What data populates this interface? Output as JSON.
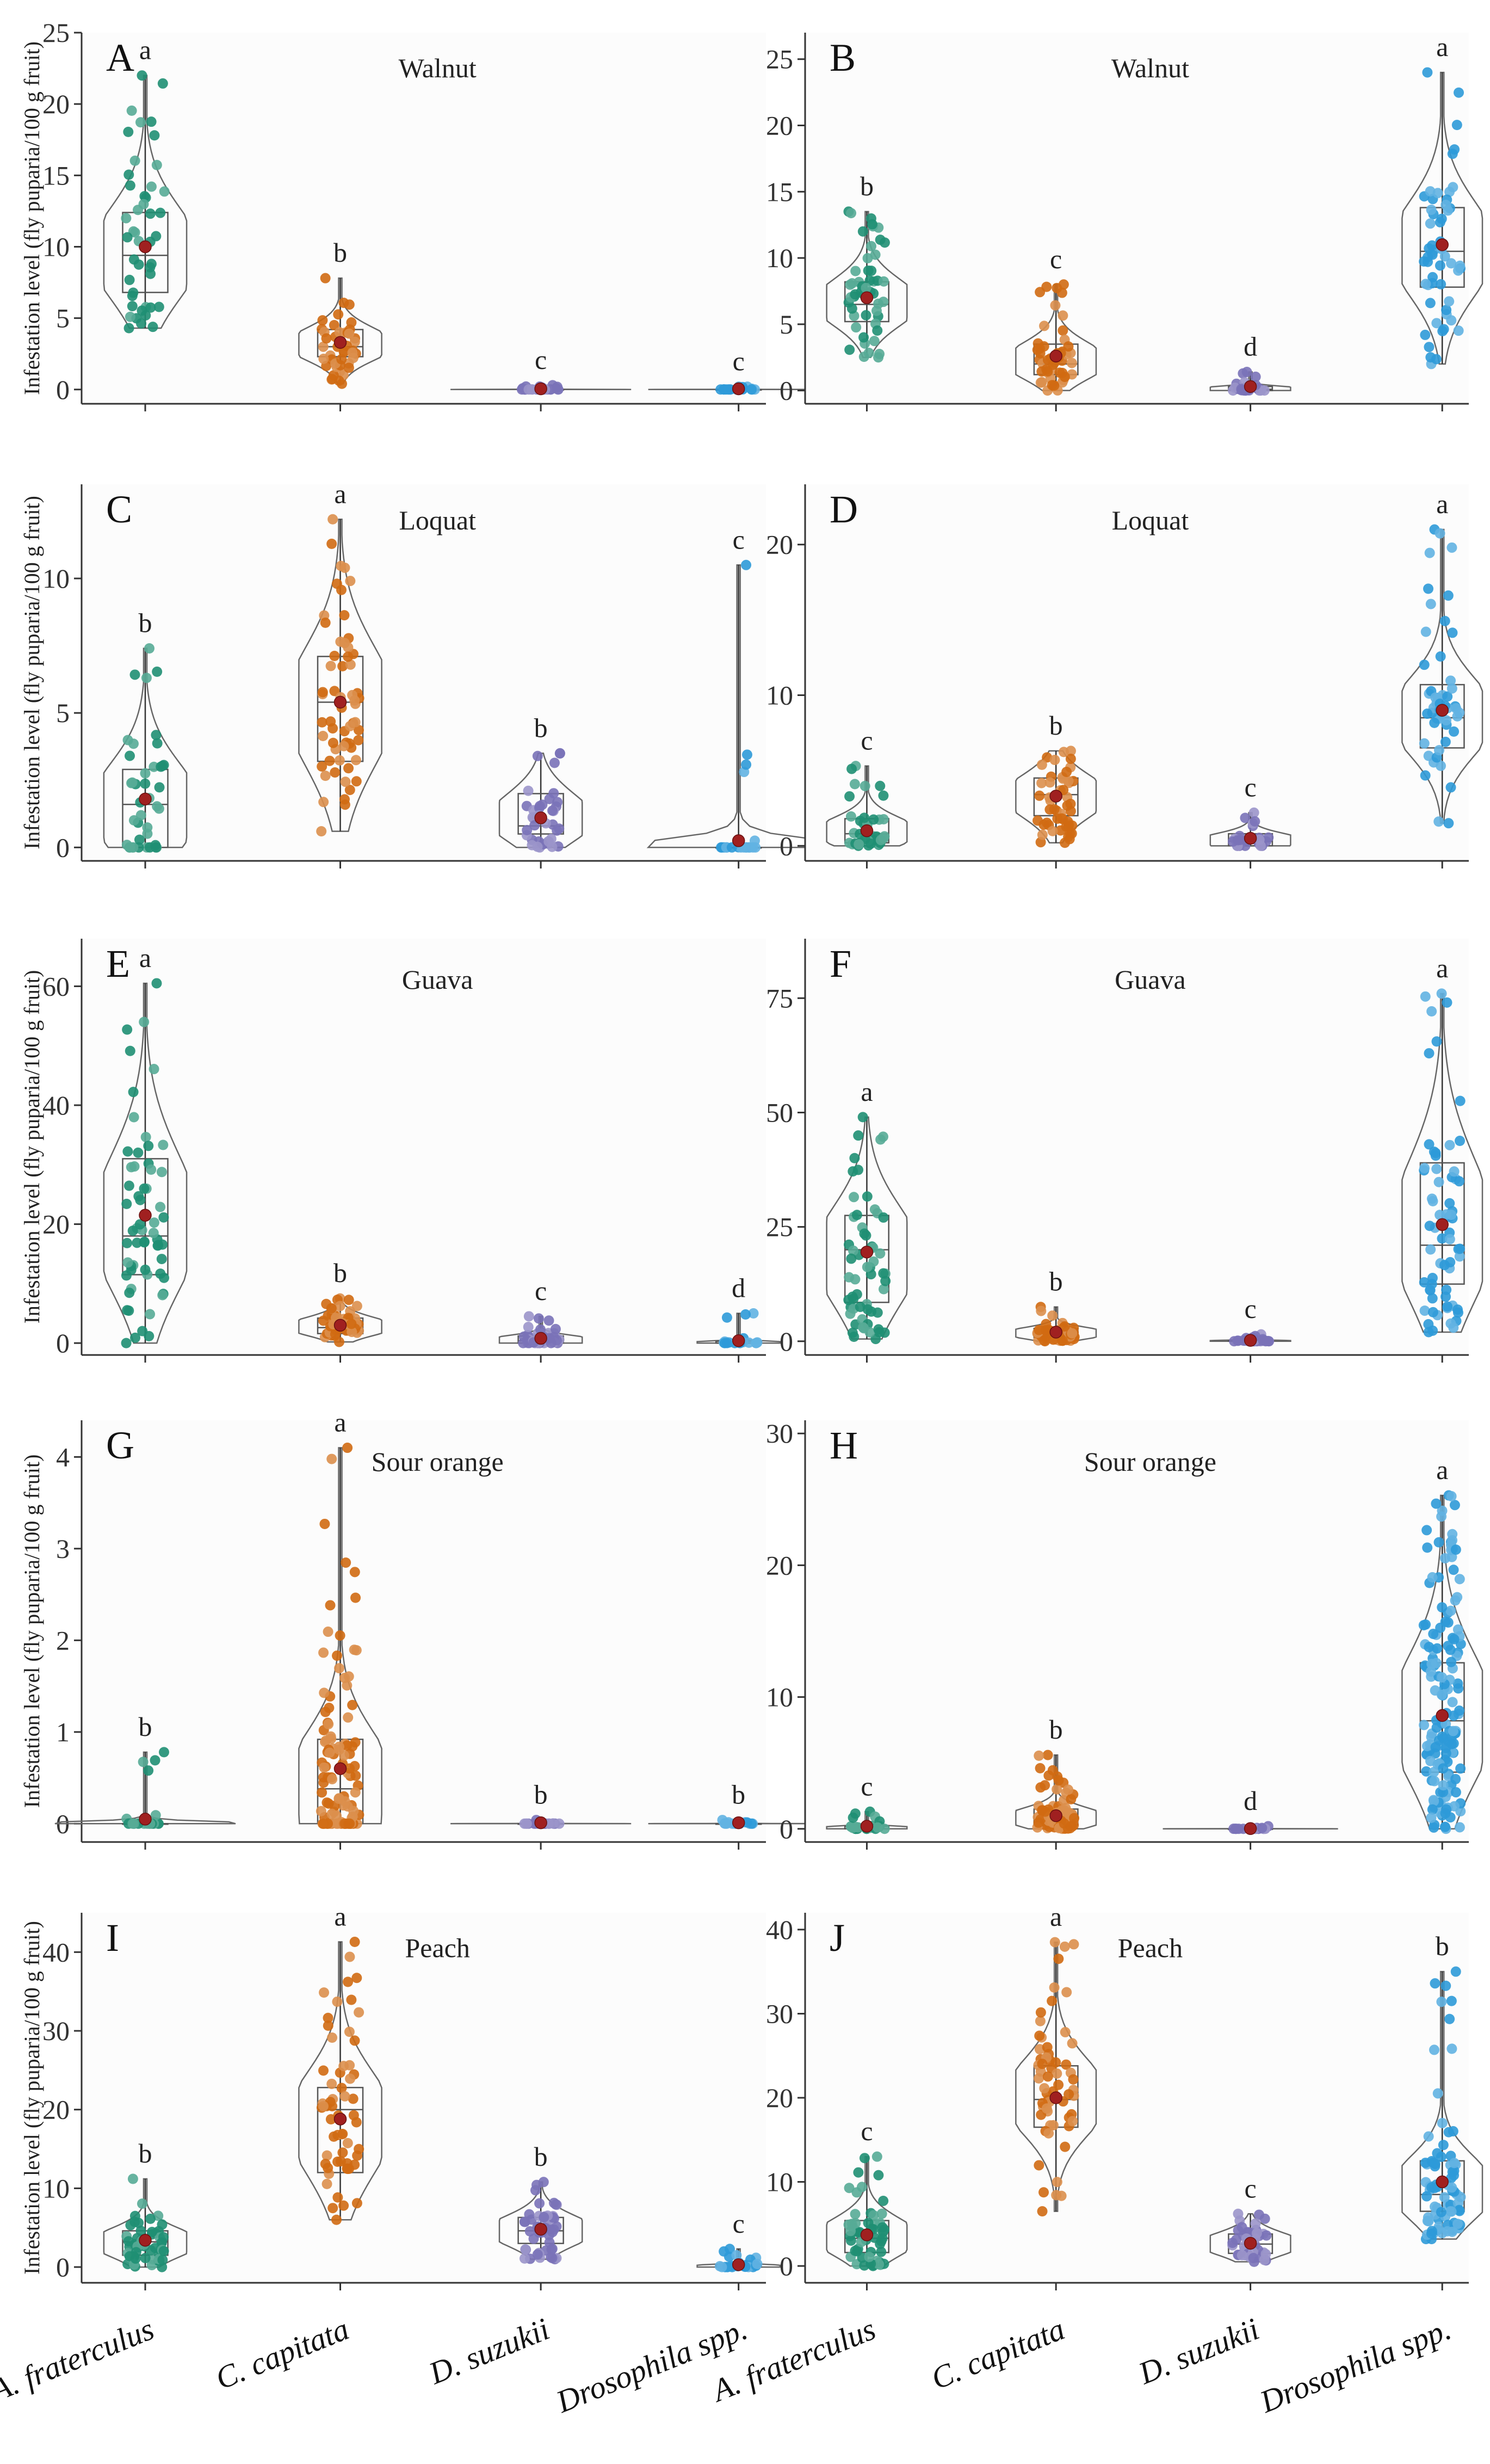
{
  "figure": {
    "ylabel": "Infestation level (fly puparia/100 g fruit)",
    "species_labels": [
      "A. fraterculus",
      "C. capitata",
      "D. suzukii",
      "Drosophila spp."
    ],
    "species_colors": [
      "#1f8f73",
      "#d06a12",
      "#7a72b8",
      "#2e9ad8"
    ]
  },
  "chart_data": [
    {
      "letter": "A",
      "fruit": "Walnut",
      "type": "box-violin-strip",
      "ylim": [
        -1,
        25
      ],
      "ticks": [
        0,
        5,
        10,
        15,
        20,
        25
      ],
      "groups": [
        {
          "category": "A. fraterculus",
          "min": 4.3,
          "q1": 6.8,
          "median": 9.4,
          "q3": 12.4,
          "max": 22.0,
          "mean": 10.0,
          "n": 45,
          "sig": "a"
        },
        {
          "category": "C. capitata",
          "min": 0.4,
          "q1": 2.3,
          "median": 3.0,
          "q3": 4.2,
          "max": 7.8,
          "mean": 3.3,
          "n": 45,
          "sig": "b"
        },
        {
          "category": "D. suzukii",
          "min": 0,
          "q1": 0,
          "median": 0,
          "q3": 0,
          "max": 0.3,
          "mean": 0.05,
          "n": 30,
          "sig": "c"
        },
        {
          "category": "Drosophila spp.",
          "min": 0,
          "q1": 0,
          "median": 0,
          "q3": 0,
          "max": 0.2,
          "mean": 0.05,
          "n": 20,
          "sig": "c"
        }
      ]
    },
    {
      "letter": "B",
      "fruit": "Walnut",
      "type": "box-violin-strip",
      "ylim": [
        -1,
        27
      ],
      "ticks": [
        0,
        5,
        10,
        15,
        20,
        25
      ],
      "groups": [
        {
          "category": "A. fraterculus",
          "min": 2.5,
          "q1": 5.2,
          "median": 6.5,
          "q3": 8.2,
          "max": 13.5,
          "mean": 7.0,
          "n": 50,
          "sig": "b"
        },
        {
          "category": "C. capitata",
          "min": 0,
          "q1": 1.2,
          "median": 2.0,
          "q3": 3.5,
          "max": 8.0,
          "mean": 2.6,
          "n": 50,
          "sig": "c"
        },
        {
          "category": "D. suzukii",
          "min": 0,
          "q1": 0,
          "median": 0.1,
          "q3": 0.3,
          "max": 1.4,
          "mean": 0.3,
          "n": 30,
          "sig": "d"
        },
        {
          "category": "Drosophila spp.",
          "min": 2.0,
          "q1": 7.8,
          "median": 10.5,
          "q3": 13.8,
          "max": 24.0,
          "mean": 11.0,
          "n": 55,
          "sig": "a"
        }
      ]
    },
    {
      "letter": "C",
      "fruit": "Loquat",
      "type": "box-violin-strip",
      "ylim": [
        -0.5,
        13.5
      ],
      "ticks": [
        0,
        5,
        10
      ],
      "groups": [
        {
          "category": "A. fraterculus",
          "min": 0,
          "q1": 0,
          "median": 1.6,
          "q3": 2.9,
          "max": 7.4,
          "mean": 1.8,
          "n": 40,
          "sig": "b"
        },
        {
          "category": "C. capitata",
          "min": 0.6,
          "q1": 3.2,
          "median": 5.4,
          "q3": 7.1,
          "max": 12.2,
          "mean": 5.4,
          "n": 60,
          "sig": "a"
        },
        {
          "category": "D. suzukii",
          "min": 0,
          "q1": 0.5,
          "median": 0.8,
          "q3": 2.0,
          "max": 3.5,
          "mean": 1.1,
          "n": 40,
          "sig": "b"
        },
        {
          "category": "Drosophila spp.",
          "min": 0,
          "q1": 0,
          "median": 0,
          "q3": 0,
          "max": 10.5,
          "mean": 0.25,
          "n": 20,
          "sig": "c"
        }
      ]
    },
    {
      "letter": "D",
      "fruit": "Loquat",
      "type": "box-violin-strip",
      "ylim": [
        -1,
        24
      ],
      "ticks": [
        0,
        10,
        20
      ],
      "groups": [
        {
          "category": "A. fraterculus",
          "min": 0,
          "q1": 0.2,
          "median": 0.8,
          "q3": 1.8,
          "max": 5.3,
          "mean": 1.0,
          "n": 40,
          "sig": "c"
        },
        {
          "category": "C. capitata",
          "min": 0.2,
          "q1": 2.0,
          "median": 3.4,
          "q3": 4.5,
          "max": 6.3,
          "mean": 3.3,
          "n": 50,
          "sig": "b"
        },
        {
          "category": "D. suzukii",
          "min": 0,
          "q1": 0,
          "median": 0.3,
          "q3": 0.8,
          "max": 2.2,
          "mean": 0.5,
          "n": 25,
          "sig": "c"
        },
        {
          "category": "Drosophila spp.",
          "min": 1.5,
          "q1": 6.5,
          "median": 8.5,
          "q3": 10.7,
          "max": 21.0,
          "mean": 9.0,
          "n": 50,
          "sig": "a"
        }
      ]
    },
    {
      "letter": "E",
      "fruit": "Guava",
      "type": "box-violin-strip",
      "ylim": [
        -2,
        68
      ],
      "ticks": [
        0,
        20,
        40,
        60
      ],
      "groups": [
        {
          "category": "A. fraterculus",
          "min": 0,
          "q1": 11.5,
          "median": 18.0,
          "q3": 31.0,
          "max": 60.5,
          "mean": 21.5,
          "n": 60,
          "sig": "a"
        },
        {
          "category": "C. capitata",
          "min": 0.2,
          "q1": 1.6,
          "median": 2.6,
          "q3": 4.2,
          "max": 7.5,
          "mean": 3.0,
          "n": 55,
          "sig": "b"
        },
        {
          "category": "D. suzukii",
          "min": 0,
          "q1": 0,
          "median": 0.4,
          "q3": 1.2,
          "max": 4.5,
          "mean": 0.8,
          "n": 40,
          "sig": "c"
        },
        {
          "category": "Drosophila spp.",
          "min": 0,
          "q1": 0,
          "median": 0,
          "q3": 0.3,
          "max": 5.0,
          "mean": 0.4,
          "n": 20,
          "sig": "d"
        }
      ]
    },
    {
      "letter": "F",
      "fruit": "Guava",
      "type": "box-violin-strip",
      "ylim": [
        -3,
        88
      ],
      "ticks": [
        0,
        25,
        50,
        75
      ],
      "groups": [
        {
          "category": "A. fraterculus",
          "min": 0.5,
          "q1": 8.5,
          "median": 20.0,
          "q3": 27.5,
          "max": 49.0,
          "mean": 19.5,
          "n": 60,
          "sig": "a"
        },
        {
          "category": "C. capitata",
          "min": 0,
          "q1": 0.8,
          "median": 1.7,
          "q3": 2.8,
          "max": 7.5,
          "mean": 2.0,
          "n": 50,
          "sig": "b"
        },
        {
          "category": "D. suzukii",
          "min": 0,
          "q1": 0,
          "median": 0,
          "q3": 0.2,
          "max": 1.5,
          "mean": 0.2,
          "n": 30,
          "sig": "c"
        },
        {
          "category": "Drosophila spp.",
          "min": 2.0,
          "q1": 12.5,
          "median": 21.0,
          "q3": 39.0,
          "max": 76.0,
          "mean": 25.5,
          "n": 65,
          "sig": "a"
        }
      ]
    },
    {
      "letter": "G",
      "fruit": "Sour orange",
      "type": "box-violin-strip",
      "ylim": [
        -0.2,
        4.4
      ],
      "ticks": [
        0,
        1,
        2,
        3,
        4
      ],
      "groups": [
        {
          "category": "A. fraterculus",
          "min": 0,
          "q1": 0,
          "median": 0,
          "q3": 0,
          "max": 0.78,
          "mean": 0.05,
          "n": 20,
          "sig": "b"
        },
        {
          "category": "C. capitata",
          "min": 0,
          "q1": 0,
          "median": 0.38,
          "q3": 0.92,
          "max": 4.1,
          "mean": 0.6,
          "n": 110,
          "sig": "a"
        },
        {
          "category": "D. suzukii",
          "min": 0,
          "q1": 0,
          "median": 0,
          "q3": 0,
          "max": 0.04,
          "mean": 0.01,
          "n": 20,
          "sig": "b"
        },
        {
          "category": "Drosophila spp.",
          "min": 0,
          "q1": 0,
          "median": 0,
          "q3": 0,
          "max": 0.04,
          "mean": 0.01,
          "n": 15,
          "sig": "b"
        }
      ]
    },
    {
      "letter": "H",
      "fruit": "Sour orange",
      "type": "box-violin-strip",
      "ylim": [
        -1,
        31
      ],
      "ticks": [
        0,
        10,
        20,
        30
      ],
      "groups": [
        {
          "category": "A. fraterculus",
          "min": 0,
          "q1": 0,
          "median": 0,
          "q3": 0.2,
          "max": 1.3,
          "mean": 0.2,
          "n": 25,
          "sig": "c"
        },
        {
          "category": "C. capitata",
          "min": 0,
          "q1": 0.3,
          "median": 0.7,
          "q3": 1.5,
          "max": 5.6,
          "mean": 1.0,
          "n": 80,
          "sig": "b"
        },
        {
          "category": "D. suzukii",
          "min": 0,
          "q1": 0,
          "median": 0,
          "q3": 0,
          "max": 0.2,
          "mean": 0.02,
          "n": 20,
          "sig": "d"
        },
        {
          "category": "Drosophila spp.",
          "min": 0,
          "q1": 4.3,
          "median": 8.2,
          "q3": 12.6,
          "max": 25.3,
          "mean": 8.6,
          "n": 150,
          "sig": "a"
        }
      ]
    },
    {
      "letter": "I",
      "fruit": "Peach",
      "type": "box-violin-strip",
      "ylim": [
        -2,
        45
      ],
      "ticks": [
        0,
        10,
        20,
        30,
        40
      ],
      "groups": [
        {
          "category": "A. fraterculus",
          "min": 0,
          "q1": 1.5,
          "median": 3.2,
          "q3": 4.6,
          "max": 11.2,
          "mean": 3.4,
          "n": 55,
          "sig": "b"
        },
        {
          "category": "C. capitata",
          "min": 6.0,
          "q1": 12.0,
          "median": 20.0,
          "q3": 22.8,
          "max": 41.3,
          "mean": 18.8,
          "n": 60,
          "sig": "a"
        },
        {
          "category": "D. suzukii",
          "min": 1.0,
          "q1": 3.0,
          "median": 4.6,
          "q3": 6.3,
          "max": 10.8,
          "mean": 4.8,
          "n": 50,
          "sig": "b"
        },
        {
          "category": "Drosophila spp.",
          "min": 0,
          "q1": 0,
          "median": 0,
          "q3": 0.3,
          "max": 2.3,
          "mean": 0.3,
          "n": 25,
          "sig": "c"
        }
      ]
    },
    {
      "letter": "J",
      "fruit": "Peach",
      "type": "box-violin-strip",
      "ylim": [
        -2,
        42
      ],
      "ticks": [
        0,
        10,
        20,
        30,
        40
      ],
      "groups": [
        {
          "category": "A. fraterculus",
          "min": 0,
          "q1": 1.6,
          "median": 3.3,
          "q3": 5.4,
          "max": 13.0,
          "mean": 3.7,
          "n": 55,
          "sig": "c"
        },
        {
          "category": "C. capitata",
          "min": 6.5,
          "q1": 16.5,
          "median": 19.8,
          "q3": 23.8,
          "max": 38.5,
          "mean": 20.0,
          "n": 60,
          "sig": "a"
        },
        {
          "category": "D. suzukii",
          "min": 0.5,
          "q1": 1.5,
          "median": 2.6,
          "q3": 3.8,
          "max": 6.2,
          "mean": 2.7,
          "n": 40,
          "sig": "c"
        },
        {
          "category": "Drosophila spp.",
          "min": 3.2,
          "q1": 6.5,
          "median": 8.5,
          "q3": 12.5,
          "max": 35.0,
          "mean": 10.0,
          "n": 80,
          "sig": "b"
        }
      ]
    }
  ]
}
